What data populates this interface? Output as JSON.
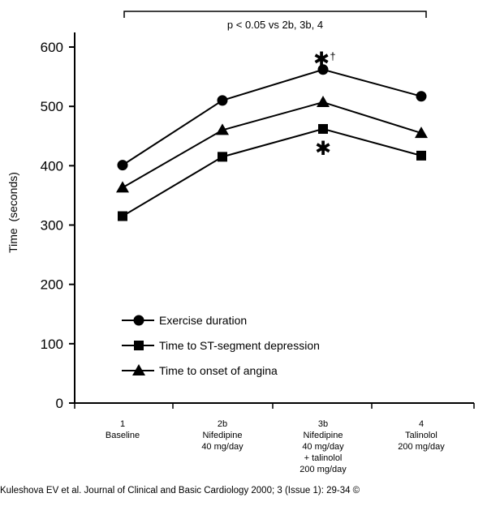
{
  "chart_data": {
    "type": "line",
    "ylabel": "Time  (seconds)",
    "xlabel": "",
    "ylim": [
      0,
      600
    ],
    "yticks": [
      0,
      100,
      200,
      300,
      400,
      500,
      600
    ],
    "grid": false,
    "legend_position": "lower-left",
    "categories": [
      [
        "1",
        "Baseline"
      ],
      [
        "2b",
        "Nifedipine",
        "40 mg/day"
      ],
      [
        "3b",
        "Nifedipine",
        "40 mg/day",
        "+ talinolol",
        "200 mg/day"
      ],
      [
        "4",
        "Talinolol",
        "200 mg/day"
      ]
    ],
    "series": [
      {
        "name": "Exercise duration",
        "marker": "circle",
        "values": [
          401,
          510,
          562,
          517
        ]
      },
      {
        "name": "Time to ST-segment depression",
        "marker": "square",
        "values": [
          315,
          415,
          462,
          417
        ]
      },
      {
        "name": "Time to onset of angina",
        "marker": "triangle",
        "values": [
          363,
          460,
          507,
          455
        ]
      }
    ],
    "annotations": {
      "significance_bracket": "p < 0.05 vs 2b, 3b, 4",
      "exercise_marker": "✱",
      "exercise_dagger": "†",
      "st_marker": "✱"
    },
    "colors": {
      "line": "#000000",
      "background": "#ffffff"
    }
  },
  "citation": "Kuleshova EV et al. Journal of Clinical and Basic Cardiology 2000; 3 (Issue 1): 29-34 ©"
}
